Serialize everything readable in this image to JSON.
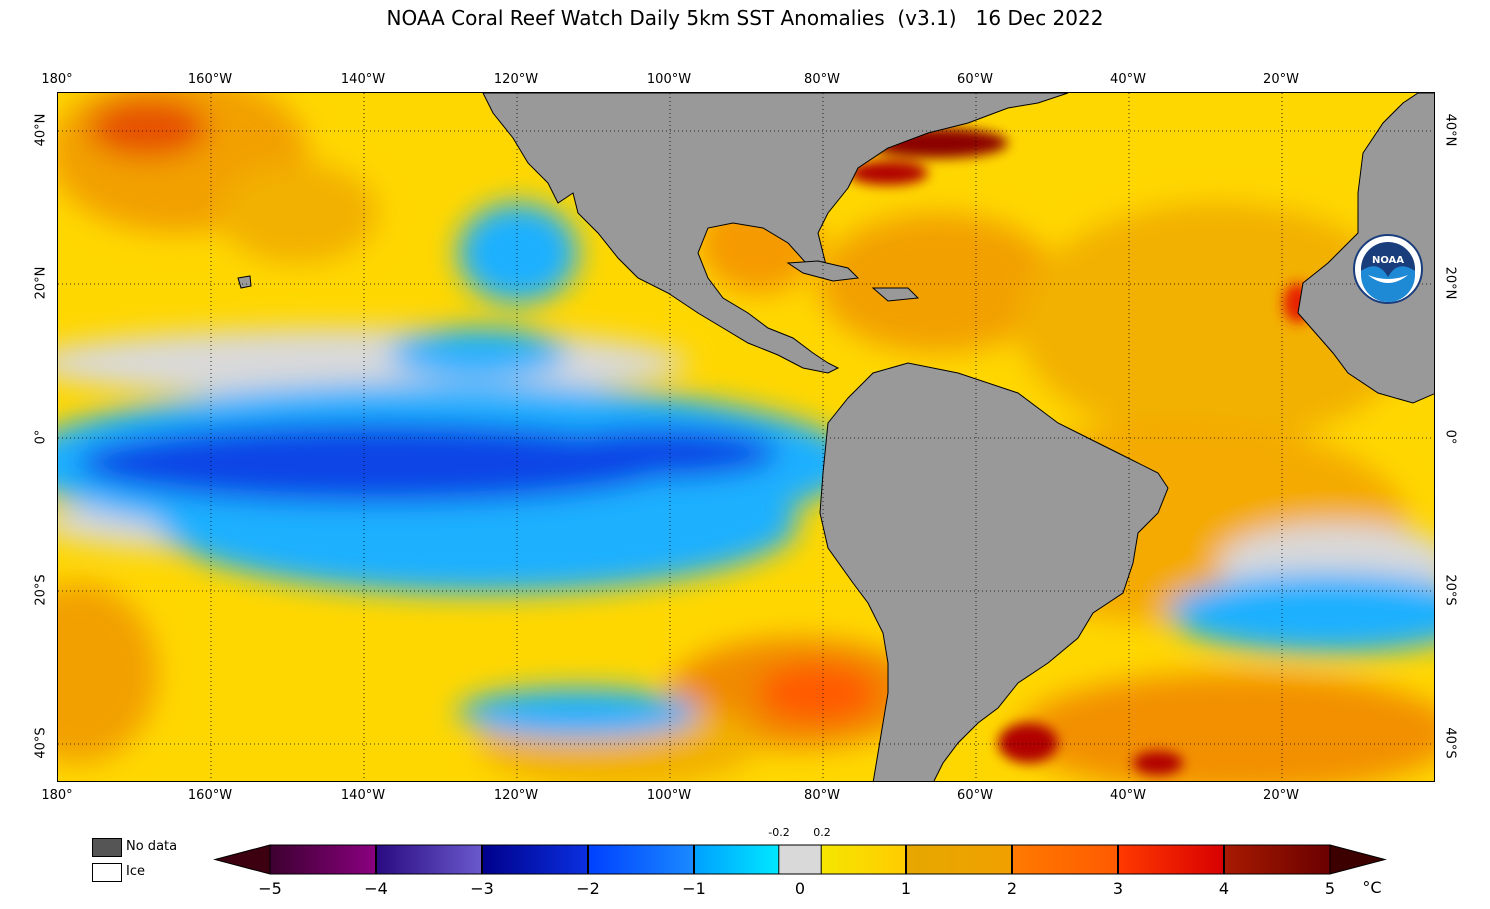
{
  "title": "NOAA Coral Reef Watch Daily 5km SST Anomalies  (v3.1)   16 Dec 2022",
  "axes": {
    "longitude_labels": [
      "180°",
      "160°W",
      "140°W",
      "120°W",
      "100°W",
      "80°W",
      "60°W",
      "40°W",
      "20°W"
    ],
    "latitude_labels": [
      "40°N",
      "20°N",
      "0°",
      "20°S",
      "40°S"
    ],
    "longitude_range": [
      -180,
      0
    ],
    "latitude_range": [
      -45,
      45
    ]
  },
  "legend": {
    "no_data_label": "No data",
    "ice_label": "Ice",
    "no_data_color": "#555555",
    "ice_color": "#ffffff"
  },
  "colorbar": {
    "tick_labels": [
      "−5",
      "−4",
      "−3",
      "−2",
      "−1",
      "0",
      "1",
      "2",
      "3",
      "4",
      "5"
    ],
    "small_labels": [
      "-0.2",
      "0.2"
    ],
    "unit": "°C",
    "range": [
      -5,
      5
    ]
  },
  "colors": {
    "land": "#999999",
    "neutral": "#d9d9d9",
    "warm_1": "#ffd700",
    "warm_2": "#f2a000",
    "warm_3": "#ff6600",
    "cold_1": "#1ab0ff",
    "cold_2": "#0a44e6"
  },
  "logo": {
    "text": "NOAA"
  }
}
